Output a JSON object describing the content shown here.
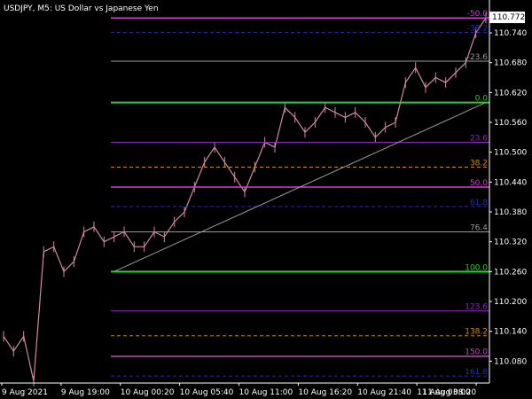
{
  "header": {
    "symbol_title": "USDJPY, M5:  US Dollar vs Japanese Yen"
  },
  "price_tag": {
    "value": "110.772",
    "fill": "#ffffff",
    "text_color": "#000000"
  },
  "colors": {
    "background": "#000000",
    "candles": "#d08aa0",
    "axis_text": "#ffffff",
    "trendline": "#9a9a9a"
  },
  "chart_data": {
    "type": "line",
    "title": "",
    "xlabel": "",
    "ylabel": "",
    "y_axis_position": "right",
    "ylim": [
      110.036,
      110.806
    ],
    "grid": false,
    "y_ticks": [
      "110.740",
      "110.680",
      "110.620",
      "110.560",
      "110.500",
      "110.440",
      "110.380",
      "110.320",
      "110.260",
      "110.200",
      "110.140",
      "110.080"
    ],
    "x_ticks": [
      "9 Aug 2021",
      "9 Aug 19:00",
      "10 Aug 00:20",
      "10 Aug 05:40",
      "10 Aug 11:00",
      "10 Aug 16:20",
      "10 Aug 21:40",
      "11 Aug 03:00",
      "11 Aug 08:20"
    ],
    "x": [
      0,
      2,
      4,
      6,
      8,
      10,
      12,
      14,
      16,
      18,
      20,
      22,
      24,
      26,
      28,
      30,
      32,
      34,
      36,
      38,
      40,
      42,
      44,
      46,
      48,
      50,
      52,
      54,
      56,
      58,
      60,
      62,
      64,
      66,
      68,
      70,
      72,
      74,
      76,
      78,
      80,
      82,
      84,
      86,
      88,
      90,
      92,
      94,
      96
    ],
    "series": [
      {
        "values": [
          110.13,
          110.1,
          110.13,
          110.04,
          110.3,
          110.31,
          110.26,
          110.28,
          110.34,
          110.35,
          110.32,
          110.33,
          110.34,
          110.31,
          110.31,
          110.34,
          110.33,
          110.36,
          110.38,
          110.43,
          110.48,
          110.51,
          110.48,
          110.45,
          110.42,
          110.47,
          110.52,
          110.51,
          110.59,
          110.57,
          110.54,
          110.56,
          110.59,
          110.58,
          110.57,
          110.58,
          110.56,
          110.53,
          110.55,
          110.56,
          110.64,
          110.67,
          110.63,
          110.65,
          110.64,
          110.66,
          110.68,
          110.74,
          110.77
        ]
      }
    ],
    "trendline": {
      "from": {
        "x": 22,
        "y": 110.26
      },
      "to": {
        "x": 96,
        "y": 110.6
      }
    },
    "fib_levels": [
      {
        "label": "-50.0",
        "price": 110.77,
        "color": "#d23cd2",
        "style": "solid",
        "width": 1.5
      },
      {
        "label": "-38.2",
        "price": 110.741,
        "color": "#2a2aa8",
        "style": "dash",
        "width": 1
      },
      {
        "label": "-23.6",
        "price": 110.683,
        "color": "#9a9a9a",
        "style": "solid",
        "width": 1
      },
      {
        "label": "0.0",
        "price": 110.6,
        "color": "#28d228",
        "style": "solid",
        "width": 2
      },
      {
        "label": "23.6",
        "price": 110.52,
        "color": "#8a2ab8",
        "style": "solid",
        "width": 1
      },
      {
        "label": "38.2",
        "price": 110.47,
        "color": "#c88c1e",
        "style": "dash",
        "width": 1
      },
      {
        "label": "50.0",
        "price": 110.43,
        "color": "#d23cd2",
        "style": "solid",
        "width": 1.5
      },
      {
        "label": "61.8",
        "price": 110.391,
        "color": "#2a2aa8",
        "style": "dash",
        "width": 1
      },
      {
        "label": "76.4",
        "price": 110.34,
        "color": "#9a9a9a",
        "style": "solid",
        "width": 1
      },
      {
        "label": "100.0",
        "price": 110.26,
        "color": "#28d228",
        "style": "solid",
        "width": 2
      },
      {
        "label": "123.6",
        "price": 110.181,
        "color": "#8a2ab8",
        "style": "solid",
        "width": 1
      },
      {
        "label": "138.2",
        "price": 110.131,
        "color": "#c88c1e",
        "style": "dash",
        "width": 1
      },
      {
        "label": "150.0",
        "price": 110.09,
        "color": "#d23cd2",
        "style": "solid",
        "width": 1.5
      },
      {
        "label": "161.8",
        "price": 110.05,
        "color": "#2a2aa8",
        "style": "dash",
        "width": 1
      }
    ]
  }
}
